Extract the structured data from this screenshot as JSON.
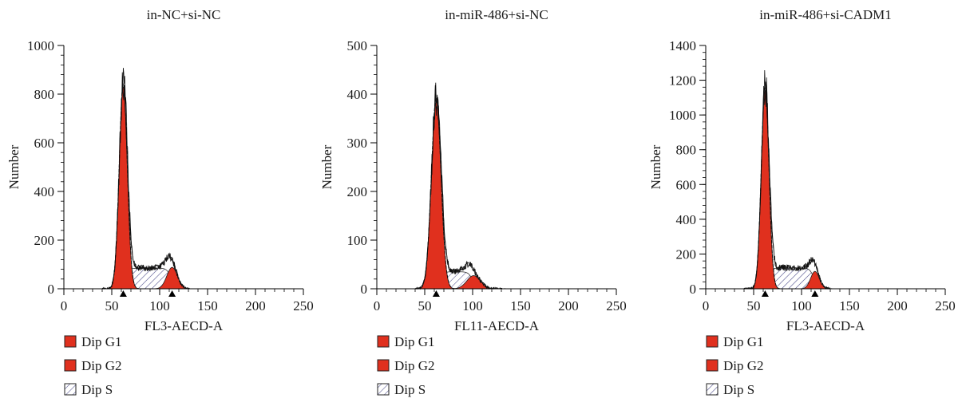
{
  "colors": {
    "g1": "#e0301e",
    "g2": "#e0301e",
    "s_hatch": "#4a4a8a",
    "axis": "#000000"
  },
  "chart_data": [
    {
      "type": "area",
      "title": "in-NC+si-NC",
      "xlabel": "FL3-AECD-A",
      "ylabel": "Number",
      "xlim": [
        0,
        250
      ],
      "ylim": [
        0,
        1000
      ],
      "xticks": [
        "0",
        "50",
        "100",
        "150",
        "200",
        "250"
      ],
      "yticks": [
        "0",
        "200",
        "400",
        "600",
        "800",
        "1000"
      ],
      "series": [
        {
          "name": "Dip G1",
          "kind": "gauss",
          "center": 62,
          "height": 830,
          "sigma": 4.2
        },
        {
          "name": "Dip G2",
          "kind": "gauss",
          "center": 113,
          "height": 88,
          "sigma": 5.5
        },
        {
          "name": "Dip S",
          "kind": "plateau",
          "start": 64,
          "end": 112,
          "height": 85
        }
      ],
      "markers": [
        62,
        113
      ],
      "legend": [
        {
          "label": "Dip G1",
          "style": "solid"
        },
        {
          "label": "Dip G2",
          "style": "solid"
        },
        {
          "label": "Dip S",
          "style": "hatch"
        }
      ]
    },
    {
      "type": "area",
      "title": "in-miR-486+si-NC",
      "xlabel": "FL11-AECD-A",
      "ylabel": "Number",
      "xlim": [
        0,
        250
      ],
      "ylim": [
        0,
        500
      ],
      "xticks": [
        "0",
        "50",
        "100",
        "150",
        "200",
        "250"
      ],
      "yticks": [
        "0",
        "100",
        "200",
        "300",
        "400",
        "500"
      ],
      "series": [
        {
          "name": "Dip G1",
          "kind": "gauss",
          "center": 62,
          "height": 385,
          "sigma": 5.0
        },
        {
          "name": "Dip G2",
          "kind": "gauss",
          "center": 101,
          "height": 27,
          "sigma": 7.0
        },
        {
          "name": "Dip S",
          "kind": "plateau",
          "start": 65,
          "end": 100,
          "height": 35
        }
      ],
      "markers": [
        62
      ],
      "legend": [
        {
          "label": "Dip G1",
          "style": "solid"
        },
        {
          "label": "Dip G2",
          "style": "solid"
        },
        {
          "label": "Dip S",
          "style": "hatch"
        }
      ]
    },
    {
      "type": "area",
      "title": "in-miR-486+si-CADM1",
      "xlabel": "FL3-AECD-A",
      "ylabel": "Number",
      "xlim": [
        0,
        250
      ],
      "ylim": [
        0,
        1400
      ],
      "xticks": [
        "0",
        "50",
        "100",
        "150",
        "200",
        "250"
      ],
      "yticks": [
        "0",
        "200",
        "400",
        "600",
        "800",
        "1000",
        "1200",
        "1400"
      ],
      "series": [
        {
          "name": "Dip G1",
          "kind": "gauss",
          "center": 62,
          "height": 1140,
          "sigma": 4.0
        },
        {
          "name": "Dip G2",
          "kind": "gauss",
          "center": 114,
          "height": 100,
          "sigma": 4.5
        },
        {
          "name": "Dip S",
          "kind": "plateau",
          "start": 64,
          "end": 113,
          "height": 120
        }
      ],
      "markers": [
        62,
        114
      ],
      "legend": [
        {
          "label": "Dip G1",
          "style": "solid"
        },
        {
          "label": "Dip G2",
          "style": "solid"
        },
        {
          "label": "Dip S",
          "style": "hatch"
        }
      ]
    }
  ]
}
